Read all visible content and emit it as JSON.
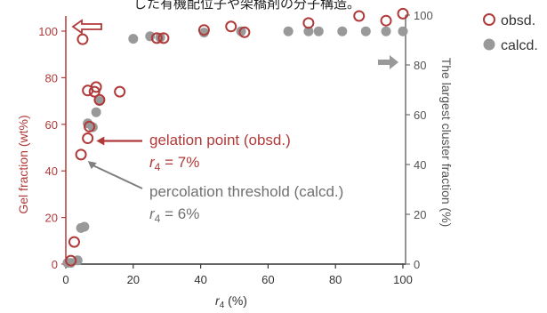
{
  "chart_data": {
    "type": "scatter",
    "top_caption": "した有機配位子や架橋剤の分子構造。",
    "xlabel_var": "r",
    "xlabel_sub": "4",
    "xlabel_unit": " (%)",
    "ylabel_left": "Gel fraction (wt%)",
    "ylabel_right": "The largest cluster fraction (%)",
    "xlim": [
      0,
      100
    ],
    "ylim_left": [
      0,
      100
    ],
    "ylim_right": [
      0,
      100
    ],
    "xticks": [
      0,
      20,
      40,
      60,
      80,
      100
    ],
    "yticks_left": [
      0,
      20,
      40,
      60,
      80,
      100
    ],
    "yticks_right": [
      0,
      20,
      40,
      60,
      80,
      100
    ],
    "grid": false,
    "legend_position": "top-right",
    "series": [
      {
        "name": "obsd.",
        "axis": "left",
        "marker": "open-circle",
        "color": "#b03a3a",
        "x": [
          1.5,
          2.5,
          4.5,
          6.5,
          7,
          5,
          8.5,
          9,
          10,
          16,
          6.5,
          41,
          49,
          53,
          27,
          29,
          72,
          87,
          95,
          100
        ],
        "y": [
          1.5,
          9.5,
          47,
          54,
          59,
          96.5,
          74,
          76,
          70.5,
          74,
          74.5,
          100.5,
          102,
          99.5,
          97,
          97,
          103.5,
          106.5,
          104.5,
          107.5
        ]
      },
      {
        "name": "calcd.",
        "axis": "right",
        "marker": "filled-circle",
        "color": "#999999",
        "x": [
          0.5,
          1.5,
          3.5,
          4.5,
          5.5,
          6.5,
          8,
          9,
          10,
          20,
          25,
          28,
          41,
          52,
          66,
          72,
          75,
          82,
          89,
          95,
          100
        ],
        "y": [
          0.5,
          0.5,
          1.5,
          14.5,
          15,
          56.5,
          55,
          61,
          65.5,
          90.5,
          91.5,
          91,
          93,
          93.5,
          93.5,
          93.5,
          93.5,
          93.5,
          93.5,
          93.5,
          93.5
        ]
      }
    ],
    "annotations": [
      {
        "id": "gelation",
        "text": "gelation point (obsd.)",
        "sub_text_var": "r",
        "sub_index": "4",
        "sub_value": " = 7%",
        "color": "#b03a3a",
        "target_x": 8,
        "target_y": 54,
        "axis": "left"
      },
      {
        "id": "percolation",
        "text": "percolation threshold (calcd.)",
        "sub_text_var": "r",
        "sub_index": "4",
        "sub_value": " = 6%",
        "color": "#707070",
        "target_x": 6,
        "target_y": 45,
        "axis": "left"
      }
    ]
  },
  "colors": {
    "obsd": "#b03a3a",
    "calcd": "#999999",
    "axis_left": "#b03a3a",
    "axis_right": "#707070",
    "axis_bottom": "#333333"
  }
}
